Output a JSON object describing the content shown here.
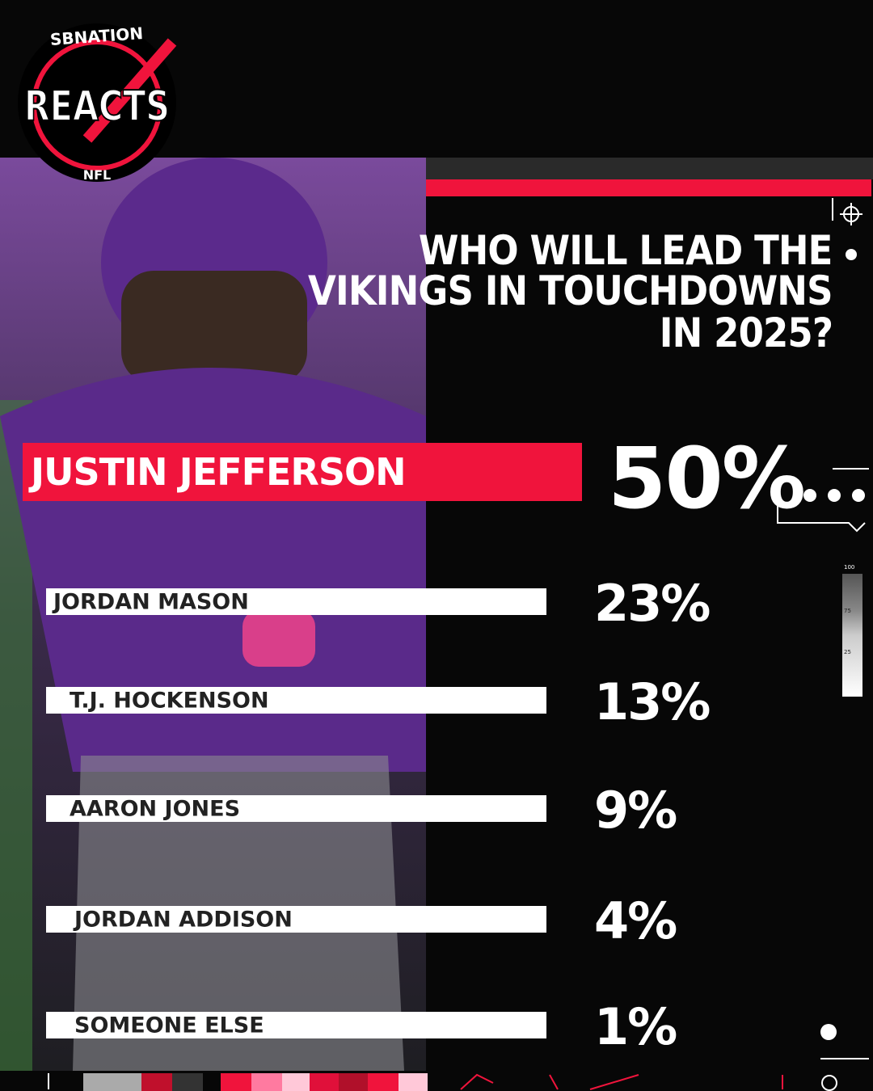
{
  "logo": {
    "brand": "SBNATION",
    "name": "REACTS",
    "league": "NFL"
  },
  "question": [
    "WHO WILL LEAD THE",
    "VIKINGS IN TOUCHDOWNS",
    "IN 2025?"
  ],
  "results": [
    {
      "name": "JUSTIN JEFFERSON",
      "percent": "50%"
    },
    {
      "name": "JORDAN MASON",
      "percent": "23%"
    },
    {
      "name": "T.J. HOCKENSON",
      "percent": "13%"
    },
    {
      "name": "AARON JONES",
      "percent": "9%"
    },
    {
      "name": "JORDAN ADDISON",
      "percent": "4%"
    },
    {
      "name": "SOMEONE ELSE",
      "percent": "1%"
    }
  ],
  "scale_labels": [
    "100",
    "75",
    "25"
  ]
}
